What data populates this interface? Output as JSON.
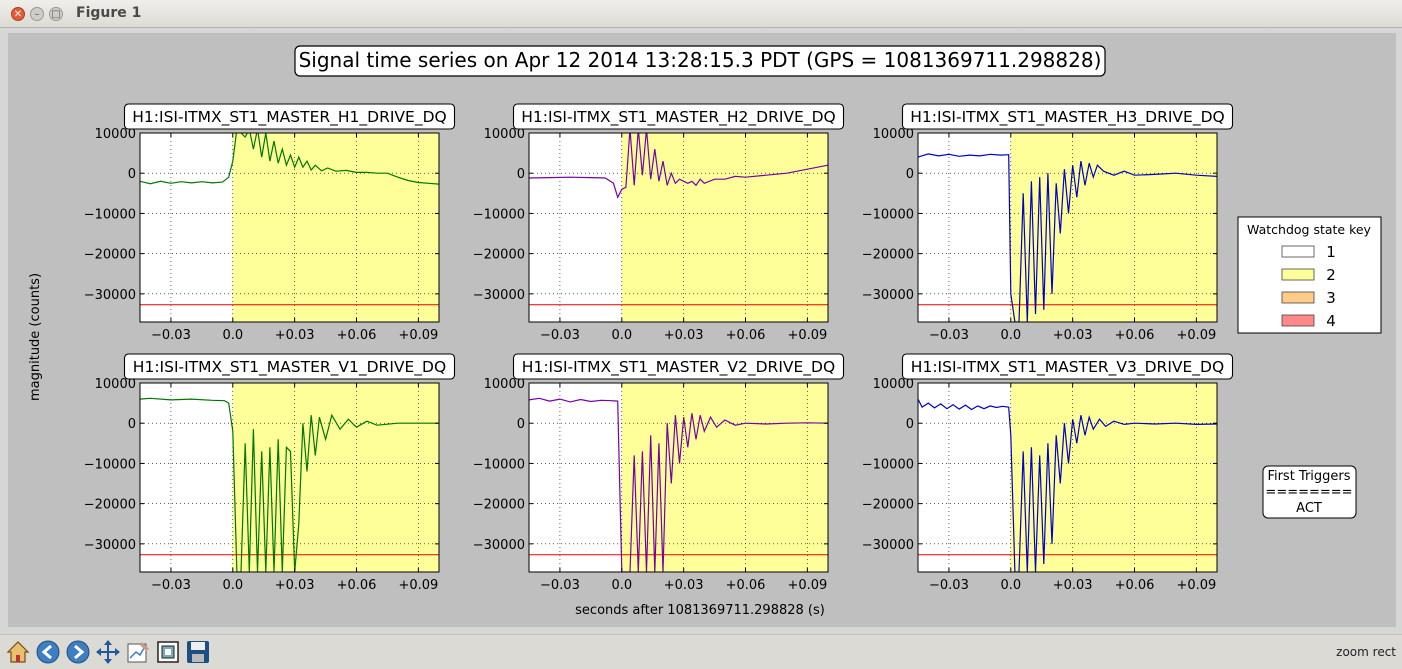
{
  "window": {
    "title": "Figure 1"
  },
  "figure": {
    "suptitle": "Signal time series on Apr 12 2014 13:28:15.3 PDT (GPS = 1081369711.298828)",
    "ylabel": "magnitude (counts)",
    "xlabel": "seconds after 1081369711.298828 (s)"
  },
  "legend": {
    "title": "Watchdog state key",
    "entries": [
      {
        "label": "1",
        "color": "#ffffff"
      },
      {
        "label": "2",
        "color": "#ffff99"
      },
      {
        "label": "3",
        "color": "#ffcc88"
      },
      {
        "label": "4",
        "color": "#ff8888"
      }
    ]
  },
  "first_triggers": {
    "lines": [
      "First Triggers",
      "========",
      "ACT"
    ]
  },
  "toolbar": {
    "status": "zoom rect",
    "buttons": [
      "home",
      "back",
      "forward",
      "pan",
      "zoom",
      "configure",
      "save"
    ]
  },
  "chart_data": [
    {
      "type": "line",
      "title": "H1:ISI-ITMX_ST1_MASTER_H1_DRIVE_DQ",
      "color": "#007700",
      "xlim": [
        -0.045,
        0.1
      ],
      "ylim": [
        -37000,
        10000
      ],
      "x_ticks": [
        -0.03,
        0.0,
        0.03,
        0.06,
        0.09
      ],
      "x_tick_labels": [
        "−0.03",
        "0.0",
        "+0.03",
        "+0.06",
        "+0.09"
      ],
      "y_ticks": [
        10000,
        0,
        -10000,
        -20000,
        -30000
      ],
      "y_tick_labels": [
        "10000",
        "0",
        "−10000",
        "−20000",
        "−30000"
      ],
      "state_regions": [
        {
          "from": -0.045,
          "to": 0.0,
          "state": "1"
        },
        {
          "from": 0.0,
          "to": 0.1,
          "state": "2"
        }
      ],
      "threshold": -32700,
      "x": [
        -0.045,
        -0.04,
        -0.035,
        -0.03,
        -0.025,
        -0.02,
        -0.015,
        -0.01,
        -0.005,
        -0.002,
        0.0,
        0.002,
        0.004,
        0.006,
        0.008,
        0.01,
        0.012,
        0.014,
        0.016,
        0.018,
        0.02,
        0.022,
        0.024,
        0.026,
        0.028,
        0.03,
        0.032,
        0.034,
        0.036,
        0.038,
        0.04,
        0.043,
        0.046,
        0.05,
        0.055,
        0.06,
        0.065,
        0.07,
        0.075,
        0.08,
        0.085,
        0.09,
        0.095,
        0.1
      ],
      "y": [
        -2000,
        -2600,
        -2000,
        -2500,
        -2100,
        -2400,
        -2100,
        -2400,
        -2200,
        -1000,
        3000,
        11000,
        10000,
        9000,
        11000,
        6000,
        11000,
        4000,
        10000,
        3000,
        8000,
        2500,
        6000,
        2000,
        4500,
        1500,
        4000,
        1500,
        3000,
        800,
        2000,
        600,
        1300,
        500,
        700,
        200,
        200,
        0,
        0,
        -1000,
        -1800,
        -2300,
        -2500,
        -2700
      ]
    },
    {
      "type": "line",
      "title": "H1:ISI-ITMX_ST1_MASTER_H2_DRIVE_DQ",
      "color": "#7700aa",
      "xlim": [
        -0.045,
        0.1
      ],
      "ylim": [
        -37000,
        10000
      ],
      "x_ticks": [
        -0.03,
        0.0,
        0.03,
        0.06,
        0.09
      ],
      "x_tick_labels": [
        "−0.03",
        "0.0",
        "+0.03",
        "+0.06",
        "+0.09"
      ],
      "y_ticks": [
        10000,
        0,
        -10000,
        -20000,
        -30000
      ],
      "y_tick_labels": [
        "10000",
        "0",
        "−10000",
        "−20000",
        "−30000"
      ],
      "state_regions": [
        {
          "from": -0.045,
          "to": 0.0,
          "state": "1"
        },
        {
          "from": 0.0,
          "to": 0.1,
          "state": "2"
        }
      ],
      "threshold": -32700,
      "x": [
        -0.045,
        -0.035,
        -0.025,
        -0.015,
        -0.008,
        -0.004,
        -0.002,
        0.0,
        0.002,
        0.004,
        0.006,
        0.008,
        0.01,
        0.012,
        0.014,
        0.016,
        0.018,
        0.02,
        0.022,
        0.024,
        0.026,
        0.028,
        0.03,
        0.032,
        0.034,
        0.036,
        0.038,
        0.04,
        0.045,
        0.05,
        0.055,
        0.06,
        0.07,
        0.08,
        0.09,
        0.1
      ],
      "y": [
        -1200,
        -1100,
        -1000,
        -1100,
        -1200,
        -2500,
        -6000,
        -4000,
        -3500,
        11000,
        -3000,
        11000,
        -500,
        11000,
        -1500,
        6000,
        -2000,
        3000,
        -3000,
        0,
        -2500,
        -1500,
        -2000,
        -2500,
        -2000,
        -3000,
        -1500,
        -2500,
        -1500,
        -1500,
        -800,
        -1000,
        -500,
        0,
        1000,
        2000
      ]
    },
    {
      "type": "line",
      "title": "H1:ISI-ITMX_ST1_MASTER_H3_DRIVE_DQ",
      "color": "#0000cc",
      "xlim": [
        -0.045,
        0.1
      ],
      "ylim": [
        -37000,
        10000
      ],
      "x_ticks": [
        -0.03,
        0.0,
        0.03,
        0.06,
        0.09
      ],
      "x_tick_labels": [
        "−0.03",
        "0.0",
        "+0.03",
        "+0.06",
        "+0.09"
      ],
      "y_ticks": [
        10000,
        0,
        -10000,
        -20000,
        -30000
      ],
      "y_tick_labels": [
        "10000",
        "0",
        "−10000",
        "−20000",
        "−30000"
      ],
      "state_regions": [
        {
          "from": -0.045,
          "to": 0.0,
          "state": "1"
        },
        {
          "from": 0.0,
          "to": 0.1,
          "state": "2"
        }
      ],
      "threshold": -32700,
      "x": [
        -0.045,
        -0.04,
        -0.035,
        -0.03,
        -0.025,
        -0.02,
        -0.015,
        -0.01,
        -0.005,
        -0.001,
        0.0,
        0.002,
        0.004,
        0.006,
        0.008,
        0.01,
        0.012,
        0.014,
        0.016,
        0.018,
        0.02,
        0.022,
        0.024,
        0.026,
        0.028,
        0.03,
        0.032,
        0.034,
        0.036,
        0.038,
        0.04,
        0.042,
        0.045,
        0.05,
        0.055,
        0.06,
        0.07,
        0.08,
        0.09,
        0.1
      ],
      "y": [
        4000,
        4800,
        4300,
        4700,
        4200,
        4500,
        4300,
        4700,
        4500,
        4600,
        -30000,
        -37000,
        -37000,
        -5000,
        -37000,
        -2000,
        -35000,
        -1000,
        -34000,
        0,
        -30000,
        -2500,
        -15000,
        1000,
        -10000,
        2000,
        -6000,
        3000,
        -3000,
        2500,
        -1000,
        2000,
        500,
        -500,
        500,
        -500,
        -300,
        0,
        -500,
        -800
      ]
    },
    {
      "type": "line",
      "title": "H1:ISI-ITMX_ST1_MASTER_V1_DRIVE_DQ",
      "color": "#007700",
      "xlim": [
        -0.045,
        0.1
      ],
      "ylim": [
        -37000,
        10000
      ],
      "x_ticks": [
        -0.03,
        0.0,
        0.03,
        0.06,
        0.09
      ],
      "x_tick_labels": [
        "−0.03",
        "0.0",
        "+0.03",
        "+0.06",
        "+0.09"
      ],
      "y_ticks": [
        10000,
        0,
        -10000,
        -20000,
        -30000
      ],
      "y_tick_labels": [
        "10000",
        "0",
        "−10000",
        "−20000",
        "−30000"
      ],
      "state_regions": [
        {
          "from": -0.045,
          "to": 0.0,
          "state": "1"
        },
        {
          "from": 0.0,
          "to": 0.1,
          "state": "2"
        }
      ],
      "threshold": -32700,
      "x": [
        -0.045,
        -0.04,
        -0.03,
        -0.02,
        -0.01,
        -0.004,
        -0.002,
        0.0,
        0.002,
        0.004,
        0.006,
        0.008,
        0.01,
        0.012,
        0.014,
        0.016,
        0.018,
        0.02,
        0.022,
        0.024,
        0.026,
        0.028,
        0.03,
        0.032,
        0.034,
        0.036,
        0.038,
        0.04,
        0.042,
        0.045,
        0.048,
        0.052,
        0.056,
        0.06,
        0.065,
        0.07,
        0.08,
        0.09,
        0.1
      ],
      "y": [
        6000,
        6200,
        5800,
        6000,
        5700,
        5600,
        5000,
        -2000,
        -37000,
        -37000,
        -5000,
        -37000,
        -1500,
        -37000,
        -7000,
        -37000,
        -6000,
        -37000,
        -4000,
        -37000,
        -6000,
        -7000,
        -37000,
        -25000,
        0,
        -12000,
        2000,
        -8000,
        1500,
        -4000,
        2000,
        -1500,
        1000,
        -1000,
        500,
        -500,
        0,
        0,
        0
      ]
    },
    {
      "type": "line",
      "title": "H1:ISI-ITMX_ST1_MASTER_V2_DRIVE_DQ",
      "color": "#7700aa",
      "xlim": [
        -0.045,
        0.1
      ],
      "ylim": [
        -37000,
        10000
      ],
      "x_ticks": [
        -0.03,
        0.0,
        0.03,
        0.06,
        0.09
      ],
      "x_tick_labels": [
        "−0.03",
        "0.0",
        "+0.03",
        "+0.06",
        "+0.09"
      ],
      "y_ticks": [
        10000,
        0,
        -10000,
        -20000,
        -30000
      ],
      "y_tick_labels": [
        "10000",
        "0",
        "−10000",
        "−20000",
        "−30000"
      ],
      "state_regions": [
        {
          "from": -0.045,
          "to": 0.0,
          "state": "1"
        },
        {
          "from": 0.0,
          "to": 0.1,
          "state": "2"
        }
      ],
      "threshold": -32700,
      "x": [
        -0.045,
        -0.04,
        -0.035,
        -0.03,
        -0.025,
        -0.02,
        -0.015,
        -0.01,
        -0.005,
        -0.002,
        0.0,
        0.002,
        0.004,
        0.006,
        0.008,
        0.01,
        0.012,
        0.014,
        0.016,
        0.018,
        0.02,
        0.022,
        0.024,
        0.026,
        0.028,
        0.03,
        0.032,
        0.034,
        0.036,
        0.038,
        0.04,
        0.043,
        0.046,
        0.05,
        0.055,
        0.06,
        0.07,
        0.08,
        0.09,
        0.1
      ],
      "y": [
        5800,
        6200,
        5500,
        6000,
        5300,
        5900,
        5400,
        5700,
        5600,
        5500,
        -37000,
        -37000,
        -37000,
        -8000,
        -37000,
        -7000,
        -37000,
        -3000,
        -37000,
        -5000,
        -37000,
        0,
        -15000,
        2000,
        -10000,
        1500,
        -6000,
        2500,
        -4000,
        2000,
        -2000,
        1500,
        -1000,
        800,
        -500,
        0,
        -200,
        0,
        100,
        0
      ]
    },
    {
      "type": "line",
      "title": "H1:ISI-ITMX_ST1_MASTER_V3_DRIVE_DQ",
      "color": "#0000cc",
      "xlim": [
        -0.045,
        0.1
      ],
      "ylim": [
        -37000,
        10000
      ],
      "x_ticks": [
        -0.03,
        0.0,
        0.03,
        0.06,
        0.09
      ],
      "x_tick_labels": [
        "−0.03",
        "0.0",
        "+0.03",
        "+0.06",
        "+0.09"
      ],
      "y_ticks": [
        10000,
        0,
        -10000,
        -20000,
        -30000
      ],
      "y_tick_labels": [
        "10000",
        "0",
        "−10000",
        "−20000",
        "−30000"
      ],
      "state_regions": [
        {
          "from": -0.045,
          "to": 0.0,
          "state": "1"
        },
        {
          "from": 0.0,
          "to": 0.1,
          "state": "2"
        }
      ],
      "threshold": -32700,
      "x": [
        -0.045,
        -0.043,
        -0.04,
        -0.037,
        -0.034,
        -0.031,
        -0.028,
        -0.025,
        -0.022,
        -0.019,
        -0.016,
        -0.013,
        -0.01,
        -0.007,
        -0.004,
        -0.001,
        0.0,
        0.002,
        0.004,
        0.006,
        0.008,
        0.01,
        0.012,
        0.014,
        0.016,
        0.018,
        0.02,
        0.022,
        0.024,
        0.026,
        0.028,
        0.03,
        0.032,
        0.034,
        0.036,
        0.038,
        0.04,
        0.043,
        0.046,
        0.05,
        0.055,
        0.06,
        0.07,
        0.08,
        0.09,
        0.1
      ],
      "y": [
        6000,
        4000,
        5000,
        3800,
        4800,
        3600,
        4600,
        3500,
        4500,
        3400,
        4300,
        3600,
        4300,
        3900,
        4200,
        4000,
        -3000,
        -37000,
        -37000,
        -7000,
        -37000,
        -6000,
        -37000,
        -8000,
        -35000,
        -5000,
        -30000,
        -3000,
        -15000,
        0,
        -10000,
        1000,
        -5000,
        2000,
        -3000,
        1500,
        -1500,
        1000,
        -800,
        500,
        -300,
        0,
        -200,
        0,
        -300,
        -200
      ]
    }
  ]
}
